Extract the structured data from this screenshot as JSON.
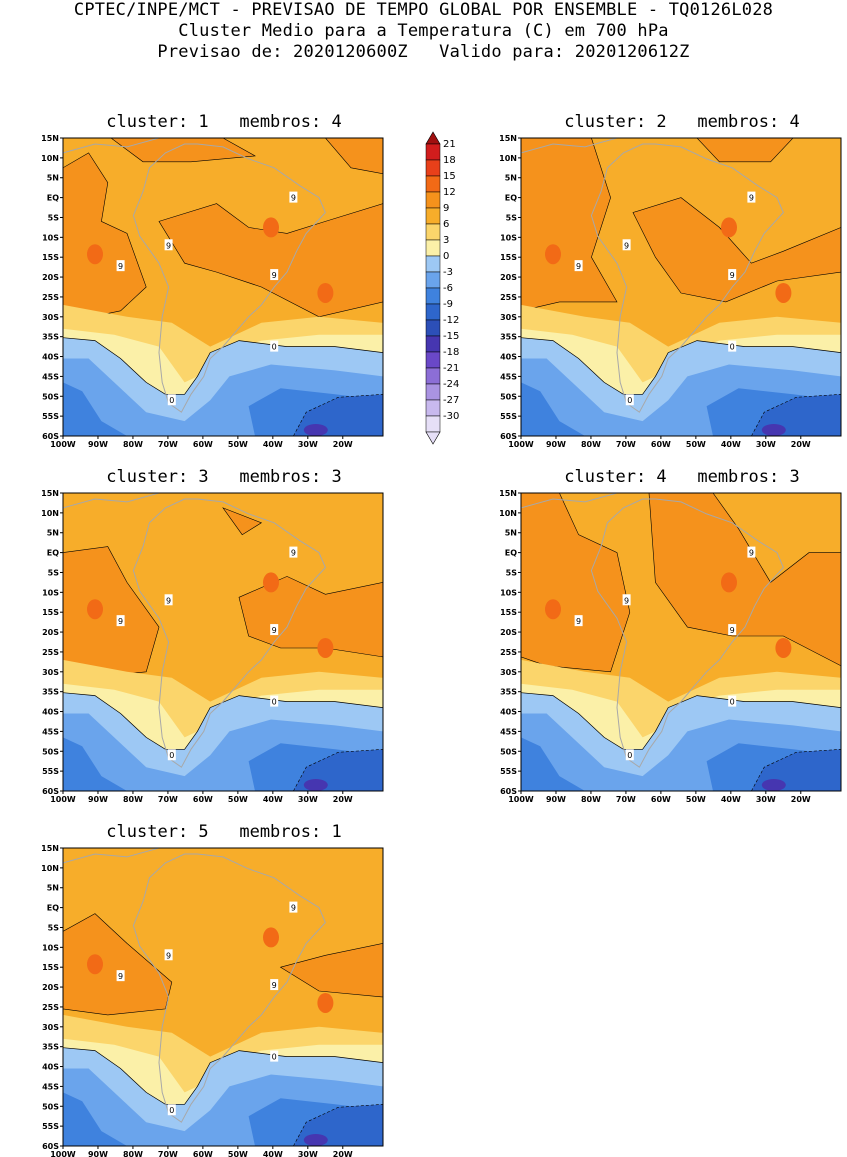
{
  "header": {
    "line1": "CPTEC/INPE/MCT - PREVISAO DE TEMPO GLOBAL POR ENSEMBLE - TQ0126L028",
    "line2": "Cluster Medio para a Temperatura (C) em 700 hPa",
    "line3": "Previsao de: 2020120600Z   Valido para: 2020120612Z"
  },
  "y_ticks": [
    "15N",
    "10N",
    "5N",
    "EQ",
    "5S",
    "10S",
    "15S",
    "20S",
    "25S",
    "30S",
    "35S",
    "40S",
    "45S",
    "50S",
    "55S",
    "60S"
  ],
  "x_ticks": [
    "100W",
    "90W",
    "80W",
    "70W",
    "60W",
    "50W",
    "40W",
    "30W",
    "20W"
  ],
  "panels": [
    {
      "title": "cluster: 1   membros: 4"
    },
    {
      "title": "cluster: 2   membros: 4"
    },
    {
      "title": "cluster: 3   membros: 3"
    },
    {
      "title": "cluster: 4   membros: 3"
    },
    {
      "title": "cluster: 5   membros: 1"
    }
  ],
  "colorbar": {
    "labels": [
      "21",
      "18",
      "15",
      "12",
      "9",
      "6",
      "3",
      "0",
      "-3",
      "-6",
      "-9",
      "-12",
      "-15",
      "-18",
      "-21",
      "-24",
      "-27",
      "-30"
    ],
    "colors": [
      "#a01010",
      "#d11d1d",
      "#e8401a",
      "#f26a16",
      "#f5921c",
      "#f7ad2a",
      "#fbd56b",
      "#fbf0a8",
      "#9dc8f4",
      "#6aa4ec",
      "#3f82de",
      "#2e66cb",
      "#2c4fb8",
      "#4636b0",
      "#6a48c8",
      "#8c6ed6",
      "#aa93e2",
      "#c8b9ee",
      "#e6dff7"
    ]
  },
  "contour_labels": {
    "warm": "9",
    "zero": "0"
  },
  "colors": {
    "land_outline": "#a8a8a8",
    "contour": "#000000"
  }
}
